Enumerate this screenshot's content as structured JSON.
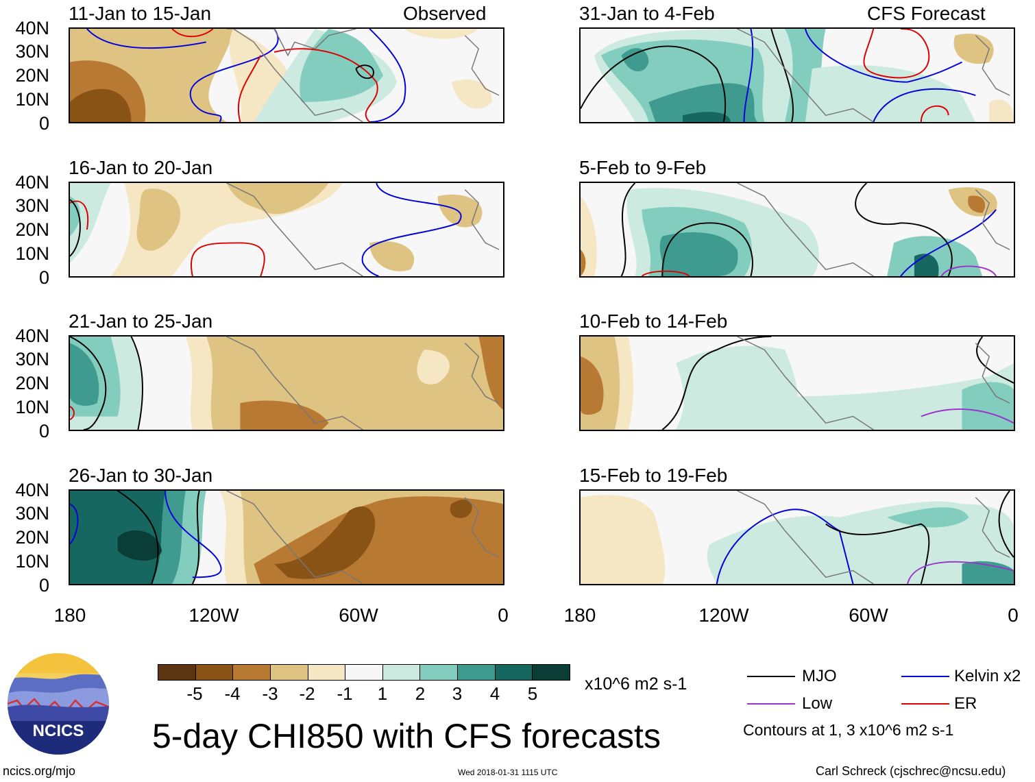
{
  "panels": {
    "left": [
      {
        "title": "11-Jan to 15-Jan",
        "tag": "Observed"
      },
      {
        "title": "16-Jan to 20-Jan",
        "tag": ""
      },
      {
        "title": "21-Jan to 25-Jan",
        "tag": ""
      },
      {
        "title": "26-Jan to 30-Jan",
        "tag": ""
      }
    ],
    "right": [
      {
        "title": "31-Jan to 4-Feb",
        "tag": "CFS Forecast"
      },
      {
        "title": "5-Feb to 9-Feb",
        "tag": ""
      },
      {
        "title": "10-Feb to 14-Feb",
        "tag": ""
      },
      {
        "title": "15-Feb to 19-Feb",
        "tag": ""
      }
    ]
  },
  "axes": {
    "lat_labels": [
      "40N",
      "30N",
      "20N",
      "10N",
      "0"
    ],
    "lon_labels": [
      "180",
      "120W",
      "60W",
      "0"
    ]
  },
  "colorbar": {
    "labels": [
      "-5",
      "-4",
      "-3",
      "-2",
      "-1",
      "1",
      "2",
      "3",
      "4",
      "5"
    ],
    "units": "x10^6 m2 s-1",
    "colors": [
      "#5c3510",
      "#8a5316",
      "#b87a32",
      "#dfc383",
      "#f6e7c4",
      "#f7f7f7",
      "#cdeae0",
      "#82cdbd",
      "#3f9b8f",
      "#15675f",
      "#0a3d36"
    ]
  },
  "legend": {
    "mjo": "MJO",
    "kelvin": "Kelvin x2",
    "low": "Low",
    "er": "ER",
    "contours": "Contours at 1, 3 x10^6 m2 s-1",
    "mjo_color": "#000000",
    "kelvin_color": "#0000dd",
    "low_color": "#9933cc",
    "er_color": "#dd0000"
  },
  "title": "5-day CHI850 with CFS forecasts",
  "logo_text": "NCICS",
  "footer": {
    "url": "ncics.org/mjo",
    "timestamp": "Wed 2018-01-31 1115 UTC",
    "credit": "Carl Schreck (cjschrec@ncsu.edu)"
  }
}
